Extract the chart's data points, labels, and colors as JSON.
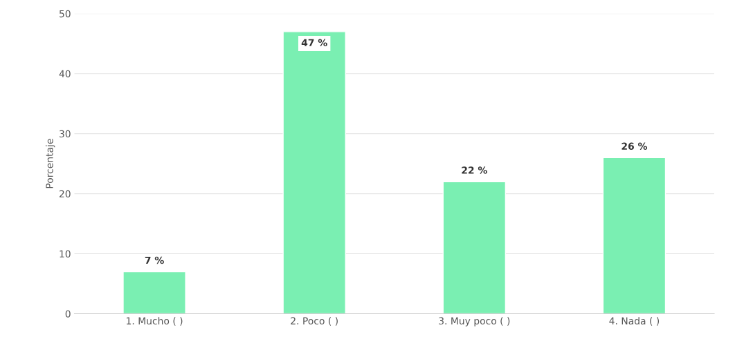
{
  "chart_data": {
    "type": "bar",
    "ylabel": "Porcentaje",
    "categories": [
      "1. Mucho ( )",
      "2. Poco ( )",
      "3. Muy poco ( )",
      "4. Nada ( )"
    ],
    "values": [
      7,
      47,
      22,
      26
    ],
    "color": "#7aefb2",
    "value_labels": [
      "7 %",
      "47 %",
      "22 %",
      "26 %"
    ],
    "ylim": [
      0,
      50
    ],
    "yticks": [
      0,
      10,
      20,
      30,
      40,
      50
    ],
    "grid": "y",
    "legend": false
  }
}
